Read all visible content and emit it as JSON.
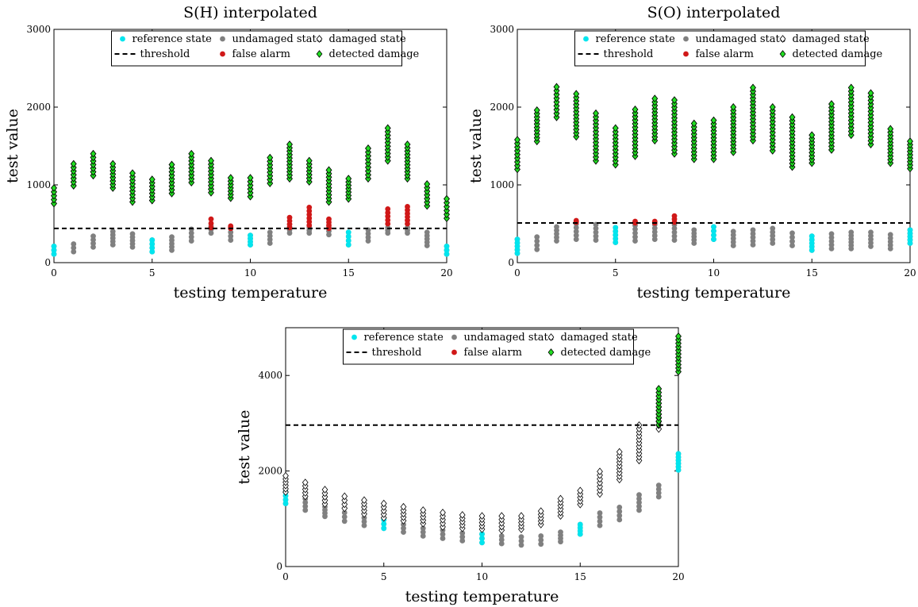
{
  "chart_data": [
    {
      "type": "scatter",
      "title": "S(H) interpolated",
      "xlabel": "testing temperature",
      "ylabel": "test value",
      "xlim": [
        0,
        20
      ],
      "ylim": [
        0,
        3000
      ],
      "xticks": [
        "0",
        "5",
        "10",
        "15",
        "20"
      ],
      "yticks": [
        "0",
        "1000",
        "2000",
        "3000"
      ],
      "legend_position": "top",
      "threshold": 440,
      "reference_state": [
        {
          "x": 0,
          "ymin": 110,
          "ymax": 210
        },
        {
          "x": 5,
          "ymin": 140,
          "ymax": 290
        },
        {
          "x": 10,
          "ymin": 230,
          "ymax": 350
        },
        {
          "x": 15,
          "ymin": 230,
          "ymax": 390
        },
        {
          "x": 20,
          "ymin": 110,
          "ymax": 210
        }
      ],
      "undamaged_state": [
        {
          "x": 0,
          "ymin": 110,
          "ymax": 210
        },
        {
          "x": 1,
          "ymin": 140,
          "ymax": 240
        },
        {
          "x": 2,
          "ymin": 200,
          "ymax": 340
        },
        {
          "x": 3,
          "ymin": 230,
          "ymax": 400
        },
        {
          "x": 4,
          "ymin": 200,
          "ymax": 370
        },
        {
          "x": 5,
          "ymin": 140,
          "ymax": 290
        },
        {
          "x": 6,
          "ymin": 160,
          "ymax": 330
        },
        {
          "x": 7,
          "ymin": 280,
          "ymax": 430
        },
        {
          "x": 8,
          "ymin": 380,
          "ymax": 470
        },
        {
          "x": 9,
          "ymin": 290,
          "ymax": 440
        },
        {
          "x": 10,
          "ymin": 230,
          "ymax": 350
        },
        {
          "x": 11,
          "ymin": 250,
          "ymax": 390
        },
        {
          "x": 12,
          "ymin": 380,
          "ymax": 460
        },
        {
          "x": 13,
          "ymin": 380,
          "ymax": 450
        },
        {
          "x": 14,
          "ymin": 360,
          "ymax": 450
        },
        {
          "x": 15,
          "ymin": 230,
          "ymax": 390
        },
        {
          "x": 16,
          "ymin": 280,
          "ymax": 420
        },
        {
          "x": 17,
          "ymin": 380,
          "ymax": 450
        },
        {
          "x": 18,
          "ymin": 380,
          "ymax": 450
        },
        {
          "x": 19,
          "ymin": 220,
          "ymax": 390
        },
        {
          "x": 20,
          "ymin": 110,
          "ymax": 210
        }
      ],
      "false_alarm": [
        {
          "x": 8,
          "ymin": 450,
          "ymax": 560
        },
        {
          "x": 9,
          "ymin": 440,
          "ymax": 470
        },
        {
          "x": 12,
          "ymin": 450,
          "ymax": 580
        },
        {
          "x": 13,
          "ymin": 480,
          "ymax": 710
        },
        {
          "x": 14,
          "ymin": 440,
          "ymax": 560
        },
        {
          "x": 17,
          "ymin": 500,
          "ymax": 690
        },
        {
          "x": 18,
          "ymin": 500,
          "ymax": 720
        }
      ],
      "damaged_state": [
        {
          "x": 0,
          "ymin": 760,
          "ymax": 960
        },
        {
          "x": 1,
          "ymin": 990,
          "ymax": 1270
        },
        {
          "x": 2,
          "ymin": 1120,
          "ymax": 1400
        },
        {
          "x": 3,
          "ymin": 960,
          "ymax": 1270
        },
        {
          "x": 4,
          "ymin": 780,
          "ymax": 1150
        },
        {
          "x": 5,
          "ymin": 800,
          "ymax": 1070
        },
        {
          "x": 6,
          "ymin": 890,
          "ymax": 1260
        },
        {
          "x": 7,
          "ymin": 1030,
          "ymax": 1400
        },
        {
          "x": 8,
          "ymin": 900,
          "ymax": 1310
        },
        {
          "x": 9,
          "ymin": 830,
          "ymax": 1090
        },
        {
          "x": 10,
          "ymin": 850,
          "ymax": 1090
        },
        {
          "x": 11,
          "ymin": 1020,
          "ymax": 1350
        },
        {
          "x": 12,
          "ymin": 1080,
          "ymax": 1520
        },
        {
          "x": 13,
          "ymin": 1040,
          "ymax": 1310
        },
        {
          "x": 14,
          "ymin": 780,
          "ymax": 1190
        },
        {
          "x": 15,
          "ymin": 820,
          "ymax": 1080
        },
        {
          "x": 16,
          "ymin": 1080,
          "ymax": 1470
        },
        {
          "x": 17,
          "ymin": 1310,
          "ymax": 1730
        },
        {
          "x": 18,
          "ymin": 1080,
          "ymax": 1520
        },
        {
          "x": 19,
          "ymin": 730,
          "ymax": 1010
        },
        {
          "x": 20,
          "ymin": 570,
          "ymax": 820
        }
      ],
      "detected_damage": [
        {
          "x": 0,
          "ymin": 760,
          "ymax": 960
        },
        {
          "x": 1,
          "ymin": 990,
          "ymax": 1270
        },
        {
          "x": 2,
          "ymin": 1120,
          "ymax": 1400
        },
        {
          "x": 3,
          "ymin": 960,
          "ymax": 1270
        },
        {
          "x": 4,
          "ymin": 780,
          "ymax": 1150
        },
        {
          "x": 5,
          "ymin": 800,
          "ymax": 1070
        },
        {
          "x": 6,
          "ymin": 890,
          "ymax": 1260
        },
        {
          "x": 7,
          "ymin": 1030,
          "ymax": 1400
        },
        {
          "x": 8,
          "ymin": 900,
          "ymax": 1310
        },
        {
          "x": 9,
          "ymin": 830,
          "ymax": 1090
        },
        {
          "x": 10,
          "ymin": 850,
          "ymax": 1090
        },
        {
          "x": 11,
          "ymin": 1020,
          "ymax": 1350
        },
        {
          "x": 12,
          "ymin": 1080,
          "ymax": 1520
        },
        {
          "x": 13,
          "ymin": 1040,
          "ymax": 1310
        },
        {
          "x": 14,
          "ymin": 780,
          "ymax": 1190
        },
        {
          "x": 15,
          "ymin": 820,
          "ymax": 1080
        },
        {
          "x": 16,
          "ymin": 1080,
          "ymax": 1470
        },
        {
          "x": 17,
          "ymin": 1310,
          "ymax": 1730
        },
        {
          "x": 18,
          "ymin": 1080,
          "ymax": 1520
        },
        {
          "x": 19,
          "ymin": 730,
          "ymax": 1010
        },
        {
          "x": 20,
          "ymin": 570,
          "ymax": 820
        }
      ]
    },
    {
      "type": "scatter",
      "title": "S(O) interpolated",
      "xlabel": "testing temperature",
      "ylabel": "test value",
      "xlim": [
        0,
        20
      ],
      "ylim": [
        0,
        3000
      ],
      "xticks": [
        "0",
        "5",
        "10",
        "15",
        "20"
      ],
      "yticks": [
        "0",
        "1000",
        "2000",
        "3000"
      ],
      "legend_position": "top",
      "threshold": 510,
      "reference_state": [
        {
          "x": 0,
          "ymin": 120,
          "ymax": 300
        },
        {
          "x": 5,
          "ymin": 260,
          "ymax": 450
        },
        {
          "x": 10,
          "ymin": 300,
          "ymax": 460
        },
        {
          "x": 15,
          "ymin": 160,
          "ymax": 340
        },
        {
          "x": 20,
          "ymin": 250,
          "ymax": 420
        }
      ],
      "undamaged_state": [
        {
          "x": 0,
          "ymin": 120,
          "ymax": 300
        },
        {
          "x": 1,
          "ymin": 170,
          "ymax": 330
        },
        {
          "x": 2,
          "ymin": 280,
          "ymax": 460
        },
        {
          "x": 3,
          "ymin": 300,
          "ymax": 500
        },
        {
          "x": 4,
          "ymin": 290,
          "ymax": 490
        },
        {
          "x": 5,
          "ymin": 260,
          "ymax": 450
        },
        {
          "x": 6,
          "ymin": 280,
          "ymax": 480
        },
        {
          "x": 7,
          "ymin": 300,
          "ymax": 490
        },
        {
          "x": 8,
          "ymin": 290,
          "ymax": 490
        },
        {
          "x": 9,
          "ymin": 250,
          "ymax": 420
        },
        {
          "x": 10,
          "ymin": 300,
          "ymax": 460
        },
        {
          "x": 11,
          "ymin": 220,
          "ymax": 400
        },
        {
          "x": 12,
          "ymin": 230,
          "ymax": 420
        },
        {
          "x": 13,
          "ymin": 250,
          "ymax": 440
        },
        {
          "x": 14,
          "ymin": 220,
          "ymax": 380
        },
        {
          "x": 15,
          "ymin": 160,
          "ymax": 340
        },
        {
          "x": 16,
          "ymin": 180,
          "ymax": 370
        },
        {
          "x": 17,
          "ymin": 180,
          "ymax": 390
        },
        {
          "x": 18,
          "ymin": 210,
          "ymax": 390
        },
        {
          "x": 19,
          "ymin": 180,
          "ymax": 360
        },
        {
          "x": 20,
          "ymin": 250,
          "ymax": 420
        }
      ],
      "false_alarm": [
        {
          "x": 3,
          "ymin": 520,
          "ymax": 540
        },
        {
          "x": 6,
          "ymin": 510,
          "ymax": 530
        },
        {
          "x": 7,
          "ymin": 510,
          "ymax": 530
        },
        {
          "x": 8,
          "ymin": 520,
          "ymax": 600
        }
      ],
      "damaged_state": [
        {
          "x": 0,
          "ymin": 1200,
          "ymax": 1580
        },
        {
          "x": 1,
          "ymin": 1560,
          "ymax": 1960
        },
        {
          "x": 2,
          "ymin": 1870,
          "ymax": 2260
        },
        {
          "x": 3,
          "ymin": 1620,
          "ymax": 2170
        },
        {
          "x": 4,
          "ymin": 1310,
          "ymax": 1920
        },
        {
          "x": 5,
          "ymin": 1260,
          "ymax": 1730
        },
        {
          "x": 6,
          "ymin": 1370,
          "ymax": 1970
        },
        {
          "x": 7,
          "ymin": 1570,
          "ymax": 2110
        },
        {
          "x": 8,
          "ymin": 1400,
          "ymax": 2090
        },
        {
          "x": 9,
          "ymin": 1330,
          "ymax": 1790
        },
        {
          "x": 10,
          "ymin": 1330,
          "ymax": 1830
        },
        {
          "x": 11,
          "ymin": 1420,
          "ymax": 2000
        },
        {
          "x": 12,
          "ymin": 1570,
          "ymax": 2250
        },
        {
          "x": 13,
          "ymin": 1440,
          "ymax": 2000
        },
        {
          "x": 14,
          "ymin": 1230,
          "ymax": 1870
        },
        {
          "x": 15,
          "ymin": 1280,
          "ymax": 1640
        },
        {
          "x": 16,
          "ymin": 1450,
          "ymax": 2040
        },
        {
          "x": 17,
          "ymin": 1640,
          "ymax": 2250
        },
        {
          "x": 18,
          "ymin": 1520,
          "ymax": 2180
        },
        {
          "x": 19,
          "ymin": 1280,
          "ymax": 1720
        },
        {
          "x": 20,
          "ymin": 1210,
          "ymax": 1560
        }
      ],
      "detected_damage": [
        {
          "x": 0,
          "ymin": 1200,
          "ymax": 1580
        },
        {
          "x": 1,
          "ymin": 1560,
          "ymax": 1960
        },
        {
          "x": 2,
          "ymin": 1870,
          "ymax": 2260
        },
        {
          "x": 3,
          "ymin": 1620,
          "ymax": 2170
        },
        {
          "x": 4,
          "ymin": 1310,
          "ymax": 1920
        },
        {
          "x": 5,
          "ymin": 1260,
          "ymax": 1730
        },
        {
          "x": 6,
          "ymin": 1370,
          "ymax": 1970
        },
        {
          "x": 7,
          "ymin": 1570,
          "ymax": 2110
        },
        {
          "x": 8,
          "ymin": 1400,
          "ymax": 2090
        },
        {
          "x": 9,
          "ymin": 1330,
          "ymax": 1790
        },
        {
          "x": 10,
          "ymin": 1330,
          "ymax": 1830
        },
        {
          "x": 11,
          "ymin": 1420,
          "ymax": 2000
        },
        {
          "x": 12,
          "ymin": 1570,
          "ymax": 2250
        },
        {
          "x": 13,
          "ymin": 1440,
          "ymax": 2000
        },
        {
          "x": 14,
          "ymin": 1230,
          "ymax": 1870
        },
        {
          "x": 15,
          "ymin": 1280,
          "ymax": 1640
        },
        {
          "x": 16,
          "ymin": 1450,
          "ymax": 2040
        },
        {
          "x": 17,
          "ymin": 1640,
          "ymax": 2250
        },
        {
          "x": 18,
          "ymin": 1520,
          "ymax": 2180
        },
        {
          "x": 19,
          "ymin": 1280,
          "ymax": 1720
        },
        {
          "x": 20,
          "ymin": 1210,
          "ymax": 1560
        }
      ]
    },
    {
      "type": "scatter",
      "title": "",
      "xlabel": "testing temperature",
      "ylabel": "test value",
      "xlim": [
        0,
        20
      ],
      "ylim": [
        0,
        5000
      ],
      "xticks": [
        "0",
        "5",
        "10",
        "15",
        "20"
      ],
      "yticks": [
        "0",
        "2000",
        "4000"
      ],
      "legend_position": "top",
      "threshold": 2960,
      "reference_state": [
        {
          "x": 0,
          "ymin": 1320,
          "ymax": 1560
        },
        {
          "x": 5,
          "ymin": 800,
          "ymax": 980
        },
        {
          "x": 10,
          "ymin": 500,
          "ymax": 680
        },
        {
          "x": 15,
          "ymin": 680,
          "ymax": 880
        },
        {
          "x": 20,
          "ymin": 2020,
          "ymax": 2360
        }
      ],
      "undamaged_state": [
        {
          "x": 0,
          "ymin": 1320,
          "ymax": 1560
        },
        {
          "x": 1,
          "ymin": 1180,
          "ymax": 1420
        },
        {
          "x": 2,
          "ymin": 1050,
          "ymax": 1250
        },
        {
          "x": 3,
          "ymin": 950,
          "ymax": 1130
        },
        {
          "x": 4,
          "ymin": 860,
          "ymax": 1020
        },
        {
          "x": 5,
          "ymin": 800,
          "ymax": 980
        },
        {
          "x": 6,
          "ymin": 720,
          "ymax": 880
        },
        {
          "x": 7,
          "ymin": 640,
          "ymax": 800
        },
        {
          "x": 8,
          "ymin": 590,
          "ymax": 760
        },
        {
          "x": 9,
          "ymin": 540,
          "ymax": 700
        },
        {
          "x": 10,
          "ymin": 500,
          "ymax": 680
        },
        {
          "x": 11,
          "ymin": 480,
          "ymax": 640
        },
        {
          "x": 12,
          "ymin": 450,
          "ymax": 620
        },
        {
          "x": 13,
          "ymin": 470,
          "ymax": 640
        },
        {
          "x": 14,
          "ymin": 520,
          "ymax": 720
        },
        {
          "x": 15,
          "ymin": 680,
          "ymax": 880
        },
        {
          "x": 16,
          "ymin": 860,
          "ymax": 1120
        },
        {
          "x": 17,
          "ymin": 980,
          "ymax": 1240
        },
        {
          "x": 18,
          "ymin": 1180,
          "ymax": 1500
        },
        {
          "x": 19,
          "ymin": 1460,
          "ymax": 1700
        },
        {
          "x": 20,
          "ymin": 2020,
          "ymax": 2360
        }
      ],
      "false_alarm": [],
      "damaged_state": [
        {
          "x": 0,
          "ymin": 1560,
          "ymax": 1900
        },
        {
          "x": 1,
          "ymin": 1470,
          "ymax": 1760
        },
        {
          "x": 2,
          "ymin": 1310,
          "ymax": 1610
        },
        {
          "x": 3,
          "ymin": 1220,
          "ymax": 1470
        },
        {
          "x": 4,
          "ymin": 1100,
          "ymax": 1390
        },
        {
          "x": 5,
          "ymin": 1020,
          "ymax": 1320
        },
        {
          "x": 6,
          "ymin": 960,
          "ymax": 1250
        },
        {
          "x": 7,
          "ymin": 900,
          "ymax": 1180
        },
        {
          "x": 8,
          "ymin": 830,
          "ymax": 1130
        },
        {
          "x": 9,
          "ymin": 800,
          "ymax": 1080
        },
        {
          "x": 10,
          "ymin": 780,
          "ymax": 1060
        },
        {
          "x": 11,
          "ymin": 760,
          "ymax": 1060
        },
        {
          "x": 12,
          "ymin": 780,
          "ymax": 1060
        },
        {
          "x": 13,
          "ymin": 880,
          "ymax": 1160
        },
        {
          "x": 14,
          "ymin": 1060,
          "ymax": 1420
        },
        {
          "x": 15,
          "ymin": 1300,
          "ymax": 1590
        },
        {
          "x": 16,
          "ymin": 1520,
          "ymax": 1990
        },
        {
          "x": 17,
          "ymin": 1820,
          "ymax": 2400
        },
        {
          "x": 18,
          "ymin": 2220,
          "ymax": 2960
        },
        {
          "x": 19,
          "ymin": 2880,
          "ymax": 3720
        },
        {
          "x": 20,
          "ymin": 4080,
          "ymax": 4820
        }
      ],
      "detected_damage": [
        {
          "x": 19,
          "ymin": 2970,
          "ymax": 3720
        },
        {
          "x": 20,
          "ymin": 4080,
          "ymax": 4820
        }
      ]
    }
  ],
  "legend": {
    "reference": "reference state",
    "undamaged": "undamaged state",
    "damaged": "damaged state",
    "threshold": "threshold",
    "false_alarm": "false alarm",
    "detected": "detected damage"
  },
  "colors": {
    "reference": "#00e5ee",
    "undamaged": "#808080",
    "false_alarm": "#d01818",
    "detected": "#22dd22",
    "damaged_edge": "#000000"
  }
}
